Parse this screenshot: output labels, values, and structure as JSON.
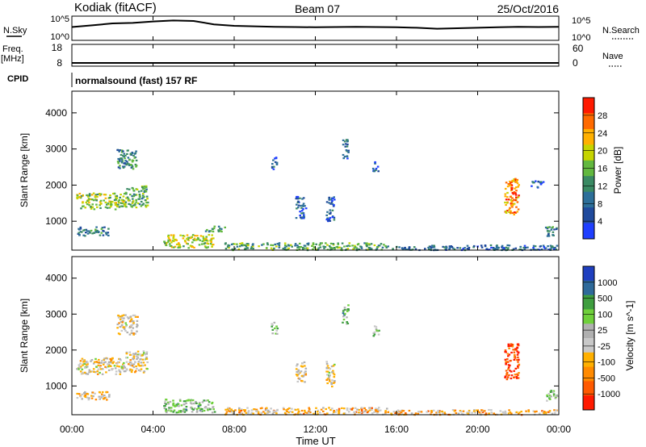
{
  "header": {
    "station": "Kodiak (fitACF)",
    "beam": "Beam 07",
    "date": "25/Oct/2016"
  },
  "colors": {
    "power_scale": [
      "#1f3fff",
      "#204a9c",
      "#2d6f99",
      "#3a8a63",
      "#62b83f",
      "#c6d400",
      "#ffb000",
      "#ff6a00",
      "#ff1a00"
    ],
    "velocity_scale": [
      "#ff1a00",
      "#ff5a00",
      "#ff8a00",
      "#ffb000",
      "#c8c8c8",
      "#b0b0b0",
      "#6fd03b",
      "#3f9e3f",
      "#2f6a9a",
      "#1f3fbf"
    ]
  },
  "chart_data": [
    {
      "type": "line",
      "title": "",
      "ylabel": "N.Sky",
      "ylabel_right": "N.Search",
      "y_tick_labels_left": [
        "10^5",
        "10^0"
      ],
      "y_tick_labels_right": [
        "10^5",
        "10^0"
      ],
      "series": [
        {
          "values": [
            0.55,
            0.62,
            0.7,
            0.72,
            0.78,
            0.82,
            0.8,
            0.66,
            0.6,
            0.58,
            0.56,
            0.55,
            0.54,
            0.55,
            0.56,
            0.55,
            0.54,
            0.52,
            0.48,
            0.5,
            0.52,
            0.54,
            0.56,
            0.55,
            0.56
          ]
        }
      ]
    },
    {
      "type": "line",
      "title": "",
      "ylabel": "Freq.",
      "ylabel_unit": "[MHz]",
      "ylabel_right": "Nave",
      "y_tick_labels_left": [
        "18",
        "8"
      ],
      "y_tick_labels_right": [
        "60",
        "0"
      ],
      "series": [
        {
          "values": [
            9.5,
            9.5,
            9.5,
            9.5,
            9.5,
            9.5,
            9.5,
            9.5,
            9.5,
            9.5,
            9.5,
            9.5,
            9.5,
            9.5,
            9.5,
            9.5,
            9.5,
            9.5,
            9.5,
            9.5,
            9.5,
            9.5,
            9.5,
            9.5,
            9.5
          ]
        }
      ]
    },
    {
      "type": "heatmap",
      "title": "",
      "cpid_label": "CPID",
      "cpid_text": "normalsound (fast) 157 RF",
      "ylabel": "Slant Range [km]",
      "yticks": [
        "1000",
        "2000",
        "3000",
        "4000"
      ],
      "ylim": [
        200,
        4600
      ],
      "xlim": [
        0,
        24
      ],
      "colorbar_label": "Power [dB]",
      "colorbar_ticks": [
        "4",
        "8",
        "12",
        "16",
        "20",
        "24",
        "28"
      ],
      "regions": [
        {
          "t0": 0.2,
          "t1": 2.6,
          "r0": 1350,
          "r1": 1800,
          "level": 0.55
        },
        {
          "t0": 2.6,
          "t1": 3.7,
          "r0": 1400,
          "r1": 2000,
          "level": 0.45
        },
        {
          "t0": 2.2,
          "t1": 3.2,
          "r0": 2450,
          "r1": 3000,
          "level": 0.35
        },
        {
          "t0": 0.2,
          "t1": 1.8,
          "r0": 620,
          "r1": 860,
          "level": 0.3
        },
        {
          "t0": 4.5,
          "t1": 7.0,
          "r0": 280,
          "r1": 650,
          "level": 0.6
        },
        {
          "t0": 6.5,
          "t1": 7.5,
          "r0": 720,
          "r1": 880,
          "level": 0.4
        },
        {
          "t0": 7.5,
          "t1": 15.5,
          "r0": 220,
          "r1": 420,
          "level": 0.45
        },
        {
          "t0": 9.8,
          "t1": 10.1,
          "r0": 2450,
          "r1": 2800,
          "level": 0.2
        },
        {
          "t0": 11.0,
          "t1": 11.5,
          "r0": 1100,
          "r1": 1700,
          "level": 0.2
        },
        {
          "t0": 12.5,
          "t1": 12.9,
          "r0": 1000,
          "r1": 1700,
          "level": 0.2
        },
        {
          "t0": 13.3,
          "t1": 13.6,
          "r0": 2750,
          "r1": 3300,
          "level": 0.25
        },
        {
          "t0": 14.8,
          "t1": 15.1,
          "r0": 2400,
          "r1": 2700,
          "level": 0.2
        },
        {
          "t0": 15.5,
          "t1": 23.9,
          "r0": 220,
          "r1": 360,
          "level": 0.25
        },
        {
          "t0": 21.3,
          "t1": 22.0,
          "r0": 1200,
          "r1": 2200,
          "level": 0.8
        },
        {
          "t0": 22.6,
          "t1": 23.2,
          "r0": 1950,
          "r1": 2150,
          "level": 0.2
        },
        {
          "t0": 23.3,
          "t1": 23.9,
          "r0": 600,
          "r1": 900,
          "level": 0.3
        }
      ]
    },
    {
      "type": "heatmap",
      "title": "",
      "ylabel": "Slant Range [km]",
      "yticks": [
        "1000",
        "2000",
        "3000",
        "4000"
      ],
      "ylim": [
        200,
        4600
      ],
      "xlim": [
        0,
        24
      ],
      "xlabel": "Time UT",
      "xticks": [
        "00:00",
        "04:00",
        "08:00",
        "12:00",
        "16:00",
        "20:00",
        "00:00"
      ],
      "colorbar_label": "Velocity [m s^-1]",
      "colorbar_ticks": [
        "1000",
        "500",
        "100",
        "25",
        "-25",
        "-100",
        "-500",
        "-1000"
      ],
      "regions": [
        {
          "t0": 0.2,
          "t1": 2.6,
          "r0": 1350,
          "r1": 1800,
          "level": 0.45
        },
        {
          "t0": 2.6,
          "t1": 3.7,
          "r0": 1400,
          "r1": 2000,
          "level": 0.45
        },
        {
          "t0": 2.2,
          "t1": 3.2,
          "r0": 2450,
          "r1": 3000,
          "level": 0.45
        },
        {
          "t0": 0.2,
          "t1": 1.8,
          "r0": 620,
          "r1": 860,
          "level": 0.4
        },
        {
          "t0": 4.5,
          "t1": 7.0,
          "r0": 280,
          "r1": 650,
          "level": 0.65
        },
        {
          "t0": 7.5,
          "t1": 15.5,
          "r0": 220,
          "r1": 420,
          "level": 0.35
        },
        {
          "t0": 9.8,
          "t1": 10.1,
          "r0": 2450,
          "r1": 2800,
          "level": 0.6
        },
        {
          "t0": 11.0,
          "t1": 11.5,
          "r0": 1100,
          "r1": 1700,
          "level": 0.45
        },
        {
          "t0": 12.5,
          "t1": 12.9,
          "r0": 1000,
          "r1": 1700,
          "level": 0.45
        },
        {
          "t0": 13.3,
          "t1": 13.6,
          "r0": 2750,
          "r1": 3300,
          "level": 0.65
        },
        {
          "t0": 14.8,
          "t1": 15.1,
          "r0": 2400,
          "r1": 2700,
          "level": 0.6
        },
        {
          "t0": 15.5,
          "t1": 23.9,
          "r0": 220,
          "r1": 360,
          "level": 0.35
        },
        {
          "t0": 21.3,
          "t1": 22.0,
          "r0": 1200,
          "r1": 2200,
          "level": 0.1
        },
        {
          "t0": 23.3,
          "t1": 23.9,
          "r0": 600,
          "r1": 900,
          "level": 0.6
        }
      ]
    }
  ]
}
